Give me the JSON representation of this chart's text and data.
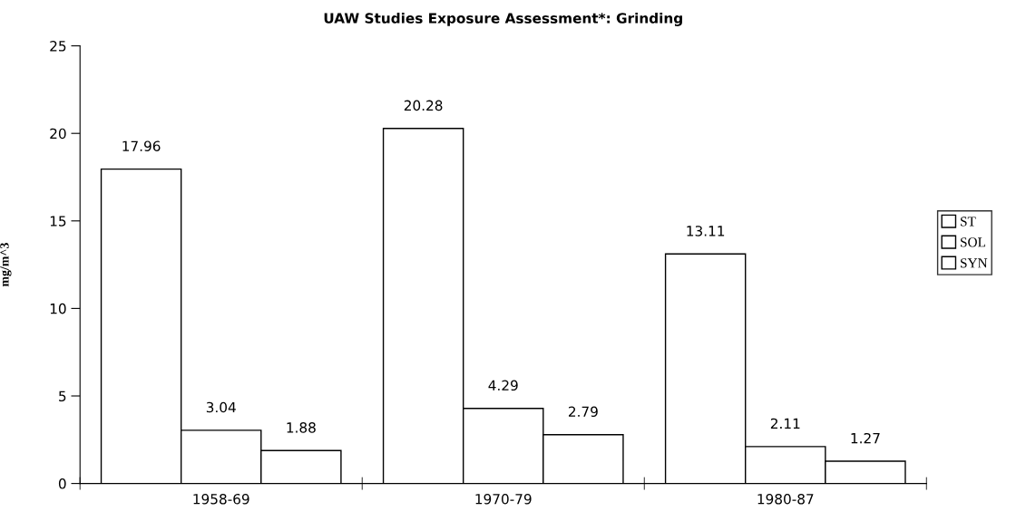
{
  "chart_data": {
    "type": "bar",
    "title": "UAW Studies Exposure Assessment*: Grinding",
    "ylabel": "mg/m^3",
    "categories": [
      "1958-69",
      "1970-79",
      "1980-87"
    ],
    "series": [
      {
        "name": "ST",
        "color": "#ffffff",
        "values": [
          17.96,
          20.28,
          13.11
        ]
      },
      {
        "name": "SOL",
        "color": "#ffffff",
        "values": [
          3.04,
          4.29,
          2.11
        ]
      },
      {
        "name": "SYN",
        "color": "#ffffff",
        "values": [
          1.88,
          2.79,
          1.27
        ]
      }
    ],
    "ylim": [
      0,
      25
    ],
    "yticks": [
      0,
      5,
      10,
      15,
      20,
      25
    ],
    "grid": false,
    "legend": "right",
    "data_labels": true
  }
}
